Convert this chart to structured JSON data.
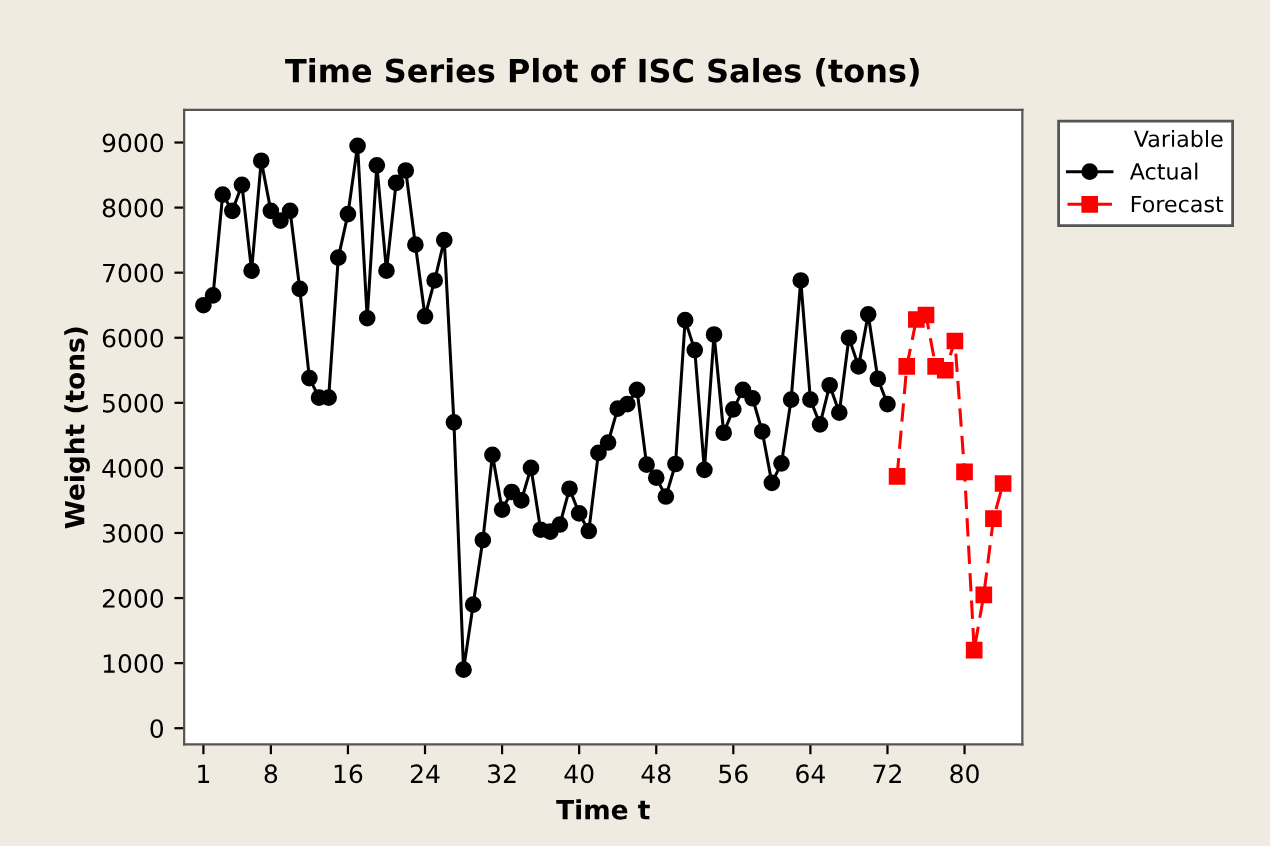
{
  "chart_data": {
    "type": "line",
    "title": "Time Series Plot of ISC Sales (tons)",
    "xlabel": "Time t",
    "ylabel": "Weight (tons)",
    "legend_title": "Variable",
    "legend": "top right",
    "grid": false,
    "xlim": [
      -1,
      86
    ],
    "xticks": [
      1,
      8,
      16,
      24,
      32,
      40,
      48,
      56,
      64,
      72,
      80
    ],
    "ylim": [
      -250,
      9500
    ],
    "yticks": [
      0,
      1000,
      2000,
      3000,
      4000,
      5000,
      6000,
      7000,
      8000,
      9000
    ],
    "series": [
      {
        "name": "Actual",
        "color": "#000000",
        "marker": "circle",
        "line_style": "solid",
        "x": [
          1,
          2,
          3,
          4,
          5,
          6,
          7,
          8,
          9,
          10,
          11,
          12,
          13,
          14,
          15,
          16,
          17,
          18,
          19,
          20,
          21,
          22,
          23,
          24,
          25,
          26,
          27,
          28,
          29,
          30,
          31,
          32,
          33,
          34,
          35,
          36,
          37,
          38,
          39,
          40,
          41,
          42,
          43,
          44,
          45,
          46,
          47,
          48,
          49,
          50,
          51,
          52,
          53,
          54,
          55,
          56,
          57,
          58,
          59,
          60,
          61,
          62,
          63,
          64,
          65,
          66,
          67,
          68,
          69,
          70,
          71,
          72
        ],
        "values": [
          6500,
          6650,
          8200,
          7950,
          8350,
          7030,
          8720,
          7950,
          7800,
          7950,
          6750,
          5380,
          5080,
          5080,
          7230,
          7900,
          8950,
          6300,
          8650,
          7030,
          8380,
          8570,
          7430,
          6330,
          6880,
          7500,
          4700,
          900,
          1900,
          2890,
          4200,
          3360,
          3630,
          3500,
          4000,
          3050,
          3020,
          3130,
          3680,
          3300,
          3030,
          4230,
          4390,
          4910,
          4980,
          5200,
          4050,
          3850,
          3560,
          4060,
          6270,
          5810,
          3970,
          6050,
          4540,
          4900,
          5200,
          5070,
          4560,
          3770,
          4070,
          5050,
          6880,
          5050,
          4670,
          5270,
          4850,
          6000,
          5560,
          6360,
          5370,
          4980
        ]
      },
      {
        "name": "Forecast",
        "color": "#ff0000",
        "marker": "square",
        "line_style": "dashed",
        "x": [
          73,
          74,
          75,
          76,
          77,
          78,
          79,
          80,
          81,
          82,
          83,
          84
        ],
        "values": [
          3870,
          5560,
          6280,
          6350,
          5560,
          5500,
          5950,
          3940,
          1200,
          2050,
          3220,
          3760
        ]
      }
    ]
  }
}
